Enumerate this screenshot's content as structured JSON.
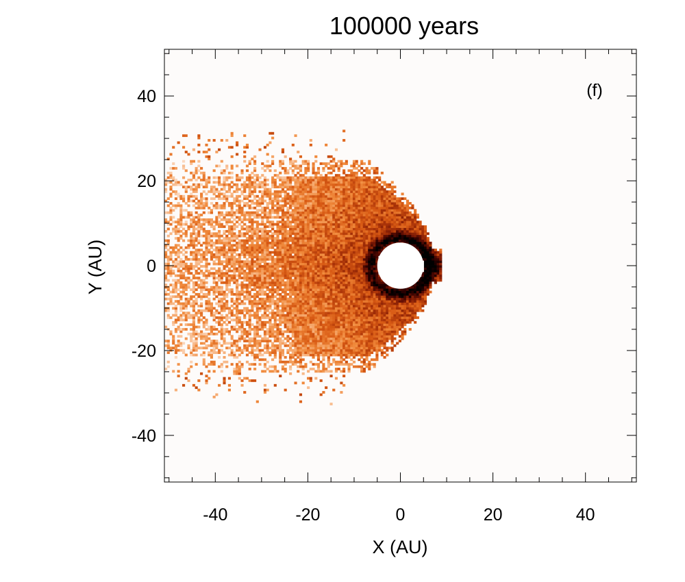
{
  "chart_data": {
    "type": "heatmap",
    "title": "100000 years",
    "xlabel": "X (AU)",
    "ylabel": "Y (AU)",
    "panel_label": "(f)",
    "xlim": [
      -51,
      51
    ],
    "ylim": [
      -51,
      51
    ],
    "x_ticks": [
      -40,
      -20,
      0,
      20,
      40
    ],
    "y_ticks": [
      -40,
      -20,
      0,
      20,
      40
    ],
    "x_tick_labels": [
      "-40",
      "-20",
      "0",
      "20",
      "40"
    ],
    "y_tick_labels": [
      "-40",
      "-20",
      "0",
      "20",
      "40"
    ],
    "minor_tick_step": 5,
    "grid": false,
    "colormap": [
      "#fdfbfa",
      "#f9c39a",
      "#f08a3c",
      "#d85a14",
      "#a83208",
      "#6e1204",
      "#2a0000",
      "#000000"
    ],
    "central_hole": {
      "center": [
        0,
        0
      ],
      "radius": 5
    },
    "dust_tail": {
      "nose_x": 7,
      "downstream_direction": "negative-x",
      "half_width_at_far_edge": 25,
      "dense_ring_radius": 6.5
    },
    "background_color": "#fdfbfa"
  }
}
